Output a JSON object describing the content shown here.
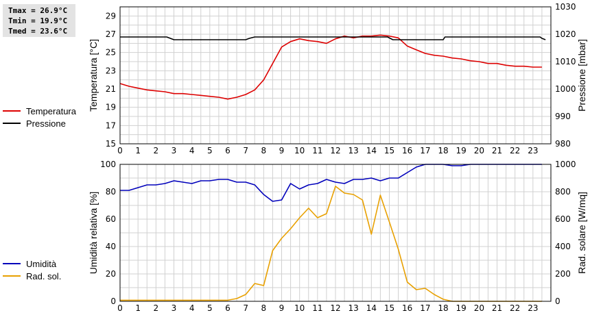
{
  "stats": {
    "tmax": "Tmax = 26.9°C",
    "tmin": "Tmin = 19.9°C",
    "tmed": "Tmed = 23.6°C"
  },
  "colors": {
    "temperature": "#dd0000",
    "pressure": "#000000",
    "humidity": "#0000bb",
    "solar": "#e8a000",
    "grid": "#d0d0d0"
  },
  "chart_data": [
    {
      "type": "line",
      "legend": [
        "Temperatura",
        "Pressione"
      ],
      "x_ticks": [
        "0",
        "1",
        "2",
        "3",
        "4",
        "5",
        "6",
        "7",
        "8",
        "9",
        "10",
        "11",
        "12",
        "13",
        "14",
        "15",
        "16",
        "17",
        "18",
        "19",
        "20",
        "21",
        "22",
        "23"
      ],
      "xlim": [
        0,
        24
      ],
      "ylabel_left": "Temperatura [°C]",
      "ylabel_right": "Pressione [mbar]",
      "ylim_left": [
        15,
        30
      ],
      "ylim_right": [
        980,
        1030
      ],
      "yticks_left": [
        "15",
        "17",
        "19",
        "21",
        "23",
        "25",
        "27",
        "29"
      ],
      "yticks_right": [
        "980",
        "990",
        "1000",
        "1010",
        "1020",
        "1030"
      ],
      "grid": true,
      "series": [
        {
          "name": "Temperatura",
          "axis": "left",
          "x": [
            0,
            0.5,
            1,
            1.5,
            2,
            2.5,
            3,
            3.5,
            4,
            4.5,
            5,
            5.5,
            6,
            6.5,
            7,
            7.5,
            8,
            8.5,
            9,
            9.5,
            10,
            10.5,
            11,
            11.5,
            12,
            12.5,
            13,
            13.5,
            14,
            14.5,
            15,
            15.5,
            16,
            16.5,
            17,
            17.5,
            18,
            18.5,
            19,
            19.5,
            20,
            20.5,
            21,
            21.5,
            22,
            22.5,
            23,
            23.5
          ],
          "values": [
            21.6,
            21.3,
            21.1,
            20.9,
            20.8,
            20.7,
            20.5,
            20.5,
            20.4,
            20.3,
            20.2,
            20.1,
            19.9,
            20.1,
            20.4,
            20.9,
            22.0,
            23.8,
            25.6,
            26.2,
            26.5,
            26.3,
            26.2,
            26.0,
            26.5,
            26.8,
            26.6,
            26.8,
            26.8,
            26.9,
            26.8,
            26.6,
            25.7,
            25.3,
            24.9,
            24.7,
            24.6,
            24.4,
            24.3,
            24.1,
            24.0,
            23.8,
            23.8,
            23.6,
            23.5,
            23.5,
            23.4,
            23.4
          ]
        },
        {
          "name": "Pressione",
          "axis": "right",
          "x": [
            0,
            2.6,
            2.8,
            3.0,
            7.0,
            7.2,
            7.5,
            14.9,
            15.2,
            18.0,
            18.1,
            23.4,
            23.5,
            23.7
          ],
          "values": [
            1019,
            1019,
            1018.5,
            1018,
            1018,
            1018.5,
            1019,
            1019,
            1018,
            1018,
            1019,
            1019,
            1018.5,
            1018
          ]
        }
      ]
    },
    {
      "type": "line",
      "legend": [
        "Umidità",
        "Rad. sol."
      ],
      "x_ticks": [
        "0",
        "1",
        "2",
        "3",
        "4",
        "5",
        "6",
        "7",
        "8",
        "9",
        "10",
        "11",
        "12",
        "13",
        "14",
        "15",
        "16",
        "17",
        "18",
        "19",
        "20",
        "21",
        "22",
        "23"
      ],
      "xlim": [
        0,
        24
      ],
      "ylabel_left": "Umidità relativa [%]",
      "ylabel_right": "Rad. solare [W/mq]",
      "ylim_left": [
        0,
        100
      ],
      "ylim_right": [
        0,
        1000
      ],
      "yticks_left": [
        "0",
        "20",
        "40",
        "60",
        "80",
        "100"
      ],
      "yticks_right": [
        "0",
        "200",
        "400",
        "600",
        "800",
        "1000"
      ],
      "grid": true,
      "series": [
        {
          "name": "Umidità",
          "axis": "left",
          "x": [
            0,
            0.5,
            1,
            1.5,
            2,
            2.5,
            3,
            3.5,
            4,
            4.5,
            5,
            5.5,
            6,
            6.5,
            7,
            7.5,
            8,
            8.5,
            9,
            9.5,
            10,
            10.5,
            11,
            11.5,
            12,
            12.5,
            13,
            13.5,
            14,
            14.5,
            15,
            15.5,
            16,
            16.5,
            17,
            17.5,
            18,
            18.5,
            19,
            19.5,
            20,
            20.5,
            21,
            21.5,
            22,
            22.5,
            23,
            23.5
          ],
          "values": [
            81,
            81,
            83,
            85,
            85,
            86,
            88,
            87,
            86,
            88,
            88,
            89,
            89,
            87,
            87,
            85,
            78,
            73,
            74,
            86,
            82,
            85,
            86,
            89,
            87,
            86,
            89,
            89,
            90,
            88,
            90,
            90,
            94,
            98,
            100,
            100,
            100,
            99,
            99,
            100,
            100,
            100,
            100,
            100,
            100,
            100,
            100,
            100
          ]
        },
        {
          "name": "Rad. sol.",
          "axis": "right",
          "x": [
            0,
            0.5,
            1,
            1.5,
            2,
            2.5,
            3,
            3.5,
            4,
            4.5,
            5,
            5.5,
            6,
            6.5,
            7,
            7.5,
            8,
            8.5,
            9,
            9.5,
            10,
            10.5,
            11,
            11.5,
            12,
            12.5,
            13,
            13.5,
            14,
            14.5,
            15,
            15.5,
            16,
            16.5,
            17,
            17.5,
            18,
            18.5,
            19,
            19.5,
            20,
            20.5,
            21,
            21.5,
            22,
            22.5,
            23,
            23.5
          ],
          "values": [
            8,
            8,
            8,
            8,
            8,
            8,
            8,
            8,
            8,
            8,
            8,
            8,
            8,
            20,
            50,
            130,
            115,
            370,
            460,
            530,
            610,
            680,
            610,
            640,
            840,
            790,
            780,
            740,
            490,
            775,
            580,
            380,
            140,
            85,
            95,
            50,
            15,
            0,
            0,
            0,
            0,
            0,
            0,
            0,
            0,
            0,
            0,
            0
          ]
        }
      ]
    }
  ]
}
